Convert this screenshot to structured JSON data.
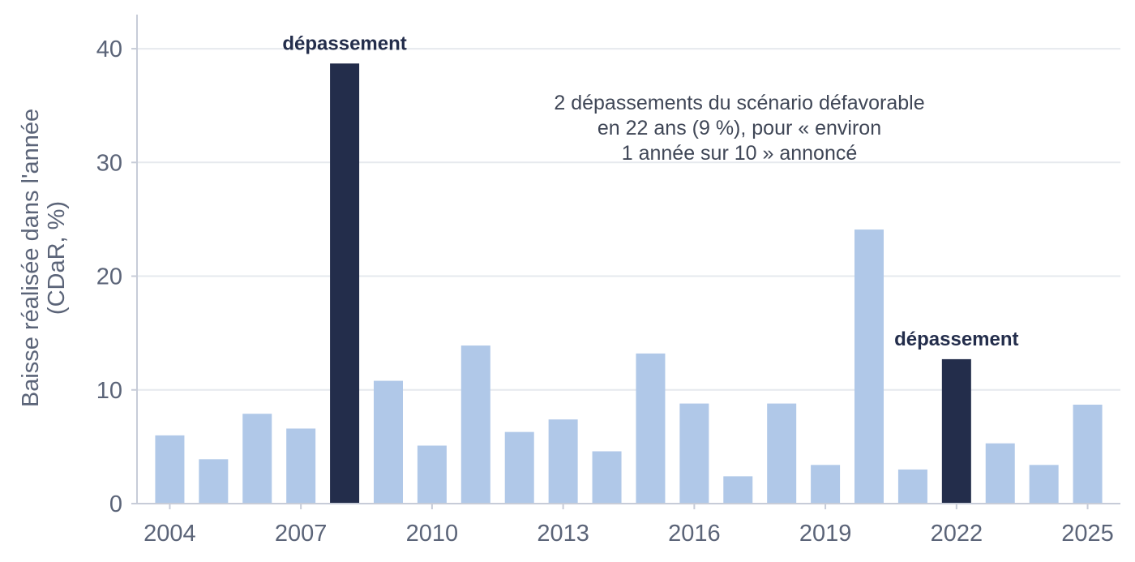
{
  "chart_data": {
    "type": "bar",
    "x": [
      2004,
      2005,
      2006,
      2007,
      2008,
      2009,
      2010,
      2011,
      2012,
      2013,
      2014,
      2015,
      2016,
      2017,
      2018,
      2019,
      2020,
      2021,
      2022,
      2023,
      2024,
      2025
    ],
    "values": [
      6.0,
      3.9,
      7.9,
      6.6,
      38.7,
      10.8,
      5.1,
      13.9,
      6.3,
      7.4,
      4.6,
      13.2,
      8.8,
      2.4,
      8.8,
      3.4,
      24.1,
      3.0,
      12.7,
      5.3,
      3.4,
      8.7
    ],
    "highlighted": [
      2008,
      2022
    ],
    "bar_labels": [
      {
        "x": 2008,
        "text": "dépassement"
      },
      {
        "x": 2022,
        "text": "dépassement"
      }
    ],
    "xticks": [
      2004,
      2007,
      2010,
      2013,
      2016,
      2019,
      2022,
      2025
    ],
    "yticks": [
      0,
      10,
      20,
      30,
      40
    ],
    "xlim": [
      2003.25,
      2025.75
    ],
    "ylim": [
      0,
      43
    ],
    "ylabel_lines": [
      "Baisse réalisée dans l'année",
      "(CDaR, %)"
    ],
    "annotation_lines": [
      "2 dépassements du scénario défavorable",
      "en 22 ans (9 %), pour « environ",
      "1 année sur 10 » annoncé"
    ],
    "grid": "horizontal",
    "colors": {
      "normal": "#b0c8e8",
      "highlight": "#232d4b",
      "grid": "#e6e9ee",
      "axis": "#c7ccd8"
    }
  }
}
